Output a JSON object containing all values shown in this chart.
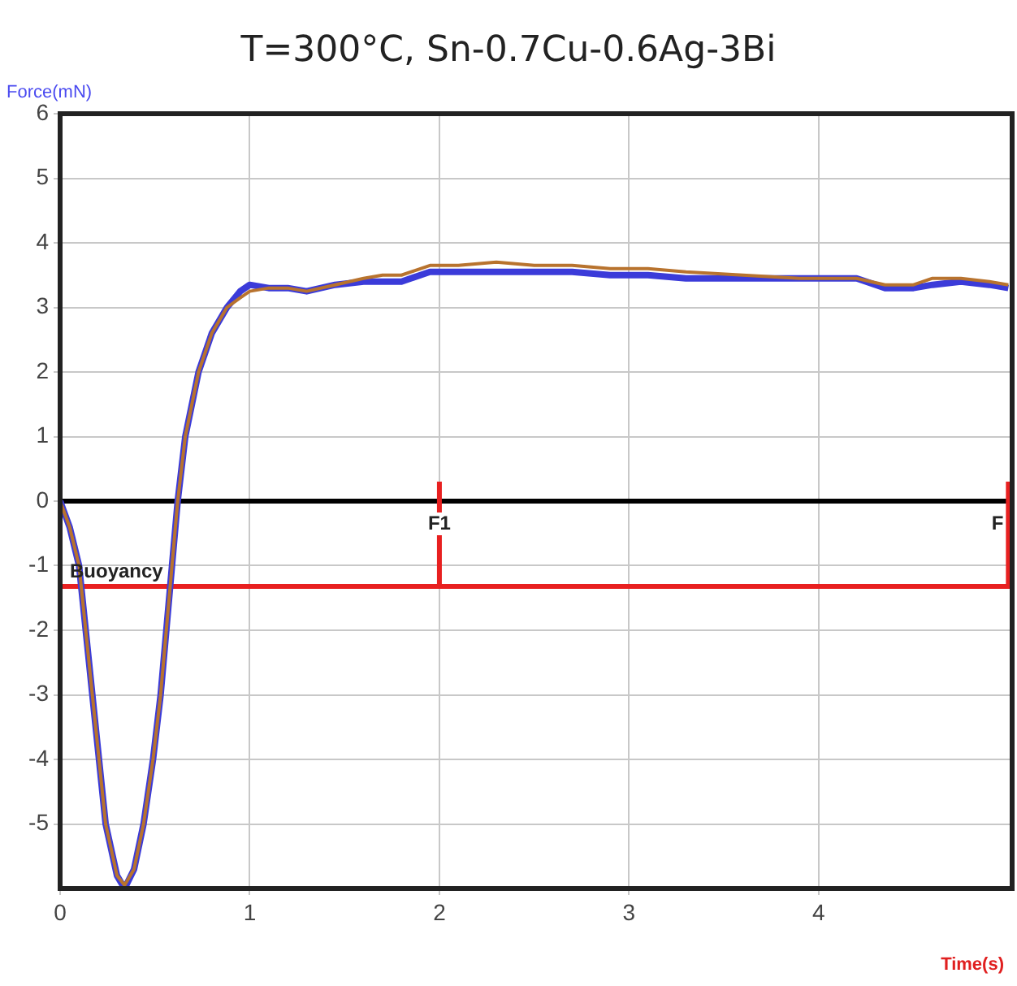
{
  "chart_data": {
    "type": "line",
    "title": "T=300°C, Sn-0.7Cu-0.6Ag-3Bi",
    "xlabel": "Time(s)",
    "ylabel": "Force(mN)",
    "xlim": [
      0,
      5.02
    ],
    "xticks": [
      0,
      1,
      2,
      3,
      4
    ],
    "ylim": [
      -6,
      6
    ],
    "yticks": [
      -5,
      -4,
      -3,
      -2,
      -1,
      0,
      1,
      2,
      3,
      4,
      5,
      6
    ],
    "grid": true,
    "marker": "none",
    "line_style": "solid",
    "series": [
      {
        "color": "#3b3bd9",
        "x": [
          0,
          0.05,
          0.1,
          0.17,
          0.24,
          0.3,
          0.34,
          0.39,
          0.44,
          0.49,
          0.53,
          0.59,
          0.62,
          0.66,
          0.73,
          0.8,
          0.88,
          0.95,
          1.0,
          1.1,
          1.2,
          1.3,
          1.45,
          1.6,
          1.7,
          1.8,
          1.95,
          2.1,
          2.3,
          2.5,
          2.7,
          2.9,
          3.1,
          3.3,
          3.6,
          3.9,
          4.2,
          4.35,
          4.5,
          4.6,
          4.75,
          4.9,
          5.0
        ],
        "values": [
          0,
          -0.4,
          -1.0,
          -3.0,
          -5.0,
          -5.8,
          -6.0,
          -5.7,
          -5.0,
          -4.0,
          -3.0,
          -1.0,
          0,
          1.0,
          2.0,
          2.6,
          3.0,
          3.25,
          3.35,
          3.3,
          3.3,
          3.25,
          3.35,
          3.4,
          3.4,
          3.4,
          3.55,
          3.55,
          3.55,
          3.55,
          3.55,
          3.5,
          3.5,
          3.45,
          3.45,
          3.45,
          3.45,
          3.3,
          3.3,
          3.35,
          3.4,
          3.35,
          3.3
        ]
      },
      {
        "color": "#b8732e",
        "x": [
          0,
          0.05,
          0.1,
          0.17,
          0.24,
          0.3,
          0.34,
          0.39,
          0.44,
          0.49,
          0.53,
          0.59,
          0.62,
          0.66,
          0.73,
          0.8,
          0.88,
          0.95,
          1.0,
          1.1,
          1.2,
          1.3,
          1.45,
          1.6,
          1.7,
          1.8,
          1.95,
          2.1,
          2.3,
          2.5,
          2.7,
          2.9,
          3.1,
          3.3,
          3.6,
          3.9,
          4.2,
          4.35,
          4.5,
          4.6,
          4.75,
          4.9,
          5.0
        ],
        "values": [
          0,
          -0.4,
          -1.0,
          -3.0,
          -5.0,
          -5.8,
          -5.95,
          -5.7,
          -5.0,
          -4.0,
          -3.0,
          -1.0,
          0,
          1.0,
          2.0,
          2.6,
          3.0,
          3.15,
          3.25,
          3.3,
          3.3,
          3.25,
          3.35,
          3.45,
          3.5,
          3.5,
          3.65,
          3.65,
          3.7,
          3.65,
          3.65,
          3.6,
          3.6,
          3.55,
          3.5,
          3.45,
          3.45,
          3.35,
          3.35,
          3.45,
          3.45,
          3.4,
          3.35
        ]
      }
    ],
    "ref_lines": [
      {
        "axis": "y",
        "value": 0,
        "color": "#000000"
      },
      {
        "axis": "y",
        "value": -1.32,
        "label": "Buoyancy",
        "color": "#e82020"
      },
      {
        "axis": "x",
        "value": 2,
        "label": "F1",
        "color": "#e82020"
      },
      {
        "axis": "x",
        "value": 5,
        "label": "F",
        "color": "#e82020"
      }
    ]
  }
}
